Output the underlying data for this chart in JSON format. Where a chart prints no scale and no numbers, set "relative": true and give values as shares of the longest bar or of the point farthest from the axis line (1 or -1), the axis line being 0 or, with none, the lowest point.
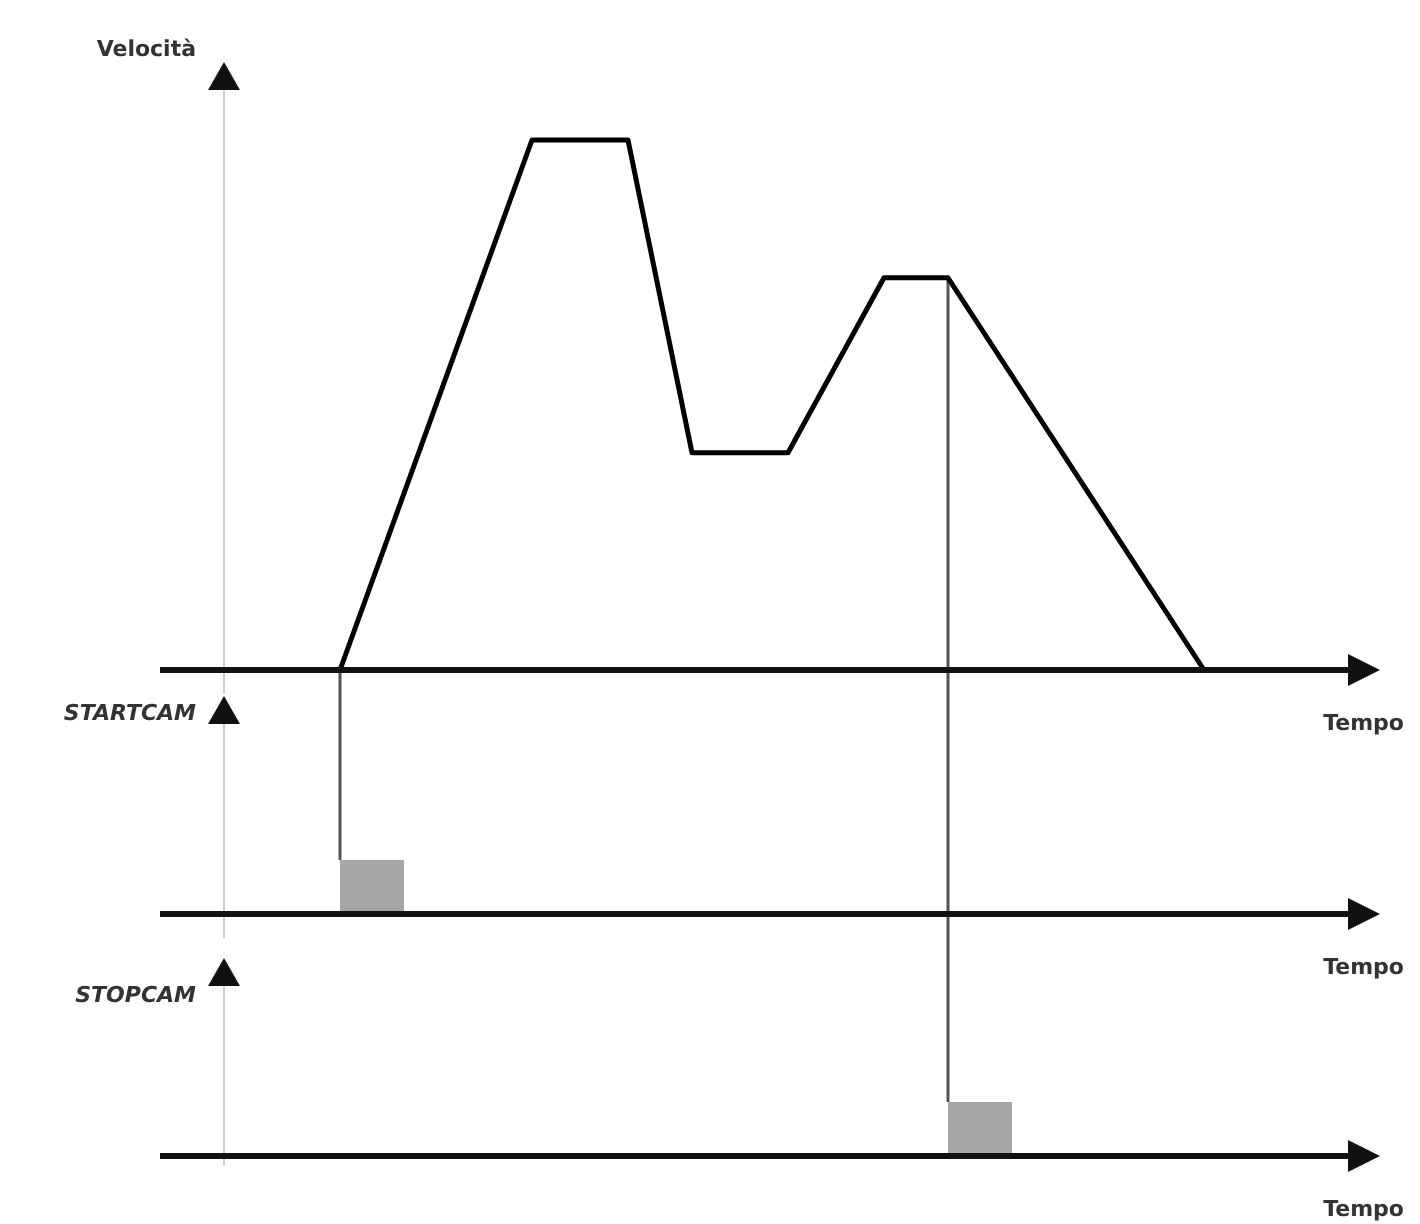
{
  "chart_data": [
    {
      "type": "line",
      "ylabel": "Velocità",
      "xlabel": "Tempo",
      "relative": true,
      "categories": [
        null,
        null,
        null,
        null,
        null,
        null,
        null,
        null,
        null,
        null,
        null,
        null,
        null,
        null,
        null,
        null,
        null,
        null,
        null,
        null,
        null,
        null,
        null,
        null,
        null,
        null,
        null,
        null,
        null,
        null,
        null,
        null,
        null,
        null,
        null,
        null,
        null,
        null
      ],
      "series": [
        {
          "color": "#000000",
          "values": [
            null,
            null,
            null,
            null,
            null,
            0,
            null,
            null,
            null,
            null,
            null,
            1,
            null,
            null,
            1,
            null,
            0.41,
            null,
            null,
            0.41,
            null,
            null,
            0.74,
            null,
            0.74,
            null,
            null,
            null,
            null,
            null,
            null,
            null,
            0,
            null,
            null,
            null,
            null,
            null
          ]
        }
      ]
    },
    {
      "type": "area",
      "ylabel": "STARTCAM",
      "xlabel": "Tempo",
      "relative": true,
      "categories": [
        null,
        null,
        null,
        null,
        null,
        null,
        null,
        null,
        null,
        null,
        null,
        null,
        null,
        null,
        null,
        null,
        null,
        null,
        null,
        null,
        null,
        null,
        null,
        null,
        null,
        null,
        null,
        null,
        null,
        null,
        null,
        null,
        null,
        null,
        null,
        null,
        null,
        null
      ],
      "series": [
        {
          "color": "#a6a6a6",
          "values": [
            0,
            0,
            0,
            0,
            0,
            1,
            1,
            0,
            0,
            0,
            0,
            0,
            0,
            0,
            0,
            0,
            0,
            0,
            0,
            0,
            0,
            0,
            0,
            0,
            0,
            0,
            0,
            0,
            0,
            0,
            0,
            0,
            0,
            0,
            0,
            0,
            0,
            0
          ]
        }
      ]
    },
    {
      "type": "area",
      "ylabel": "STOPCAM",
      "xlabel": "Tempo",
      "relative": true,
      "categories": [
        null,
        null,
        null,
        null,
        null,
        null,
        null,
        null,
        null,
        null,
        null,
        null,
        null,
        null,
        null,
        null,
        null,
        null,
        null,
        null,
        null,
        null,
        null,
        null,
        null,
        null,
        null,
        null,
        null,
        null,
        null,
        null,
        null,
        null,
        null,
        null,
        null,
        null
      ],
      "series": [
        {
          "color": "#a6a6a6",
          "values": [
            0,
            0,
            0,
            0,
            0,
            0,
            0,
            0,
            0,
            0,
            0,
            0,
            0,
            0,
            0,
            0,
            0,
            0,
            0,
            0,
            0,
            0,
            0,
            0,
            1,
            1,
            0,
            0,
            0,
            0,
            0,
            0,
            0,
            0,
            0,
            0,
            0,
            0
          ]
        }
      ]
    }
  ]
}
